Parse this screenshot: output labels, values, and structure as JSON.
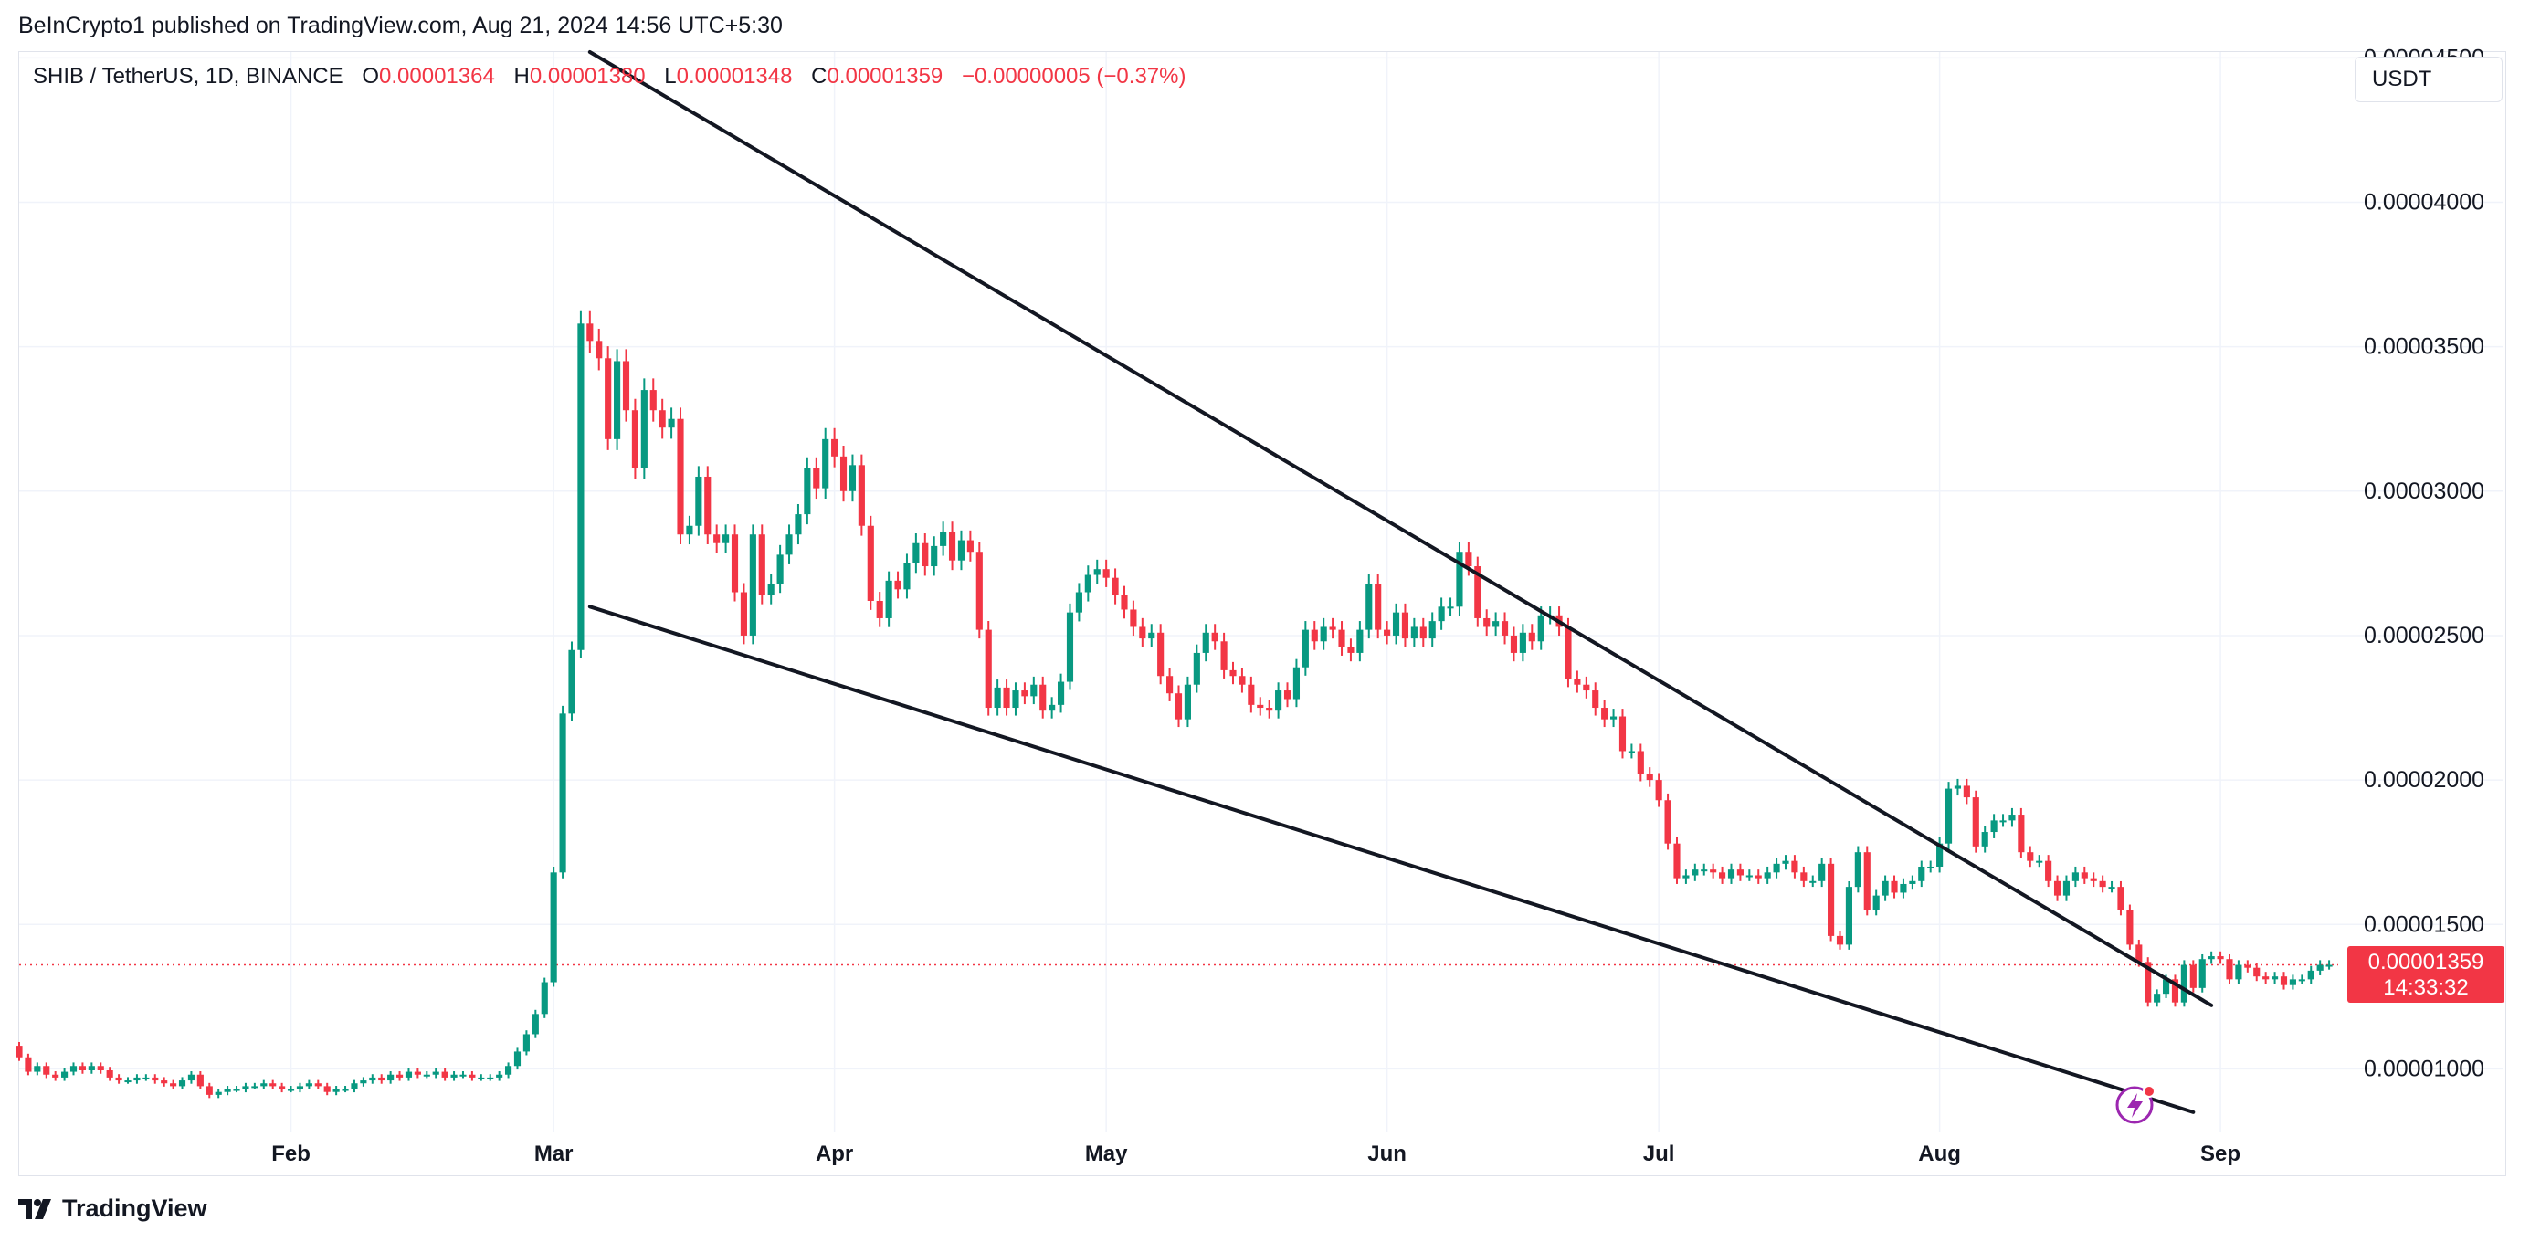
{
  "header": {
    "published_line": "BeInCrypto1 published on TradingView.com, Aug 21, 2024 14:56 UTC+5:30"
  },
  "legend": {
    "symbol": "SHIB / TetherUS, 1D, BINANCE",
    "open_label": "O",
    "open": "0.00001364",
    "high_label": "H",
    "high": "0.00001380",
    "low_label": "L",
    "low": "0.00001348",
    "close_label": "C",
    "close": "0.00001359",
    "change": "−0.00000005 (−0.37%)"
  },
  "currency_selector": {
    "label": "USDT"
  },
  "last_price": {
    "price": "0.00001359",
    "countdown": "14:33:32"
  },
  "footer": {
    "brand": "TradingView",
    "logo_icon": "tradingview-logo-icon"
  },
  "colors": {
    "up": "#089981",
    "down": "#f23645",
    "grid": "#f0f3fa",
    "trendline": "#131722",
    "badge": "#9c27b0"
  },
  "chart_data": {
    "type": "candlestick",
    "y_axis": {
      "min": 7.8e-06,
      "max": 4.52e-05,
      "ticks": [
        1e-05,
        1.5e-05,
        2e-05,
        2.5e-05,
        3e-05,
        3.5e-05,
        4e-05,
        4.5e-05
      ],
      "tick_labels": [
        "0.00001000",
        "0.00001500",
        "0.00002000",
        "0.00002500",
        "0.00003000",
        "0.00003500",
        "0.00004000",
        "0.00004500"
      ]
    },
    "x_axis": {
      "start": "2024-01-02",
      "end": "2024-09-14",
      "ticks": [
        "2024-02-01",
        "2024-03-01",
        "2024-04-01",
        "2024-05-01",
        "2024-06-01",
        "2024-07-01",
        "2024-08-01",
        "2024-09-01"
      ],
      "tick_labels": [
        "Feb",
        "Mar",
        "Apr",
        "May",
        "Jun",
        "Jul",
        "Aug",
        "Sep"
      ]
    },
    "candles_start": "2024-01-01",
    "series": [
      {
        "name": "SHIB / TetherUS",
        "close": [
          1.08e-05,
          1.04e-05,
          9.9e-06,
          1.01e-05,
          9.8e-06,
          9.7e-06,
          9.9e-06,
          1.01e-05,
          9.95e-06,
          1.01e-05,
          9.95e-06,
          9.7e-06,
          9.6e-06,
          9.6e-06,
          9.7e-06,
          9.7e-06,
          9.6e-06,
          9.5e-06,
          9.4e-06,
          9.6e-06,
          9.8e-06,
          9.4e-06,
          9.1e-06,
          9.2e-06,
          9.3e-06,
          9.3e-06,
          9.4e-06,
          9.4e-06,
          9.5e-06,
          9.4e-06,
          9.3e-06,
          9.3e-06,
          9.4e-06,
          9.5e-06,
          9.4e-06,
          9.2e-06,
          9.3e-06,
          9.3e-06,
          9.5e-06,
          9.6e-06,
          9.7e-06,
          9.6e-06,
          9.8e-06,
          9.7e-06,
          9.9e-06,
          9.8e-06,
          9.8e-06,
          9.9e-06,
          9.7e-06,
          9.8e-06,
          9.8e-06,
          9.7e-06,
          9.7e-06,
          9.7e-06,
          9.8e-06,
          1.01e-05,
          1.06e-05,
          1.12e-05,
          1.19e-05,
          1.3e-05,
          1.68e-05,
          2.23e-05,
          2.45e-05,
          3.58e-05,
          3.52e-05,
          3.46e-05,
          3.18e-05,
          3.45e-05,
          3.28e-05,
          3.08e-05,
          3.35e-05,
          3.28e-05,
          3.22e-05,
          3.25e-05,
          2.85e-05,
          2.88e-05,
          3.05e-05,
          2.85e-05,
          2.82e-05,
          2.85e-05,
          2.65e-05,
          2.5e-05,
          2.85e-05,
          2.64e-05,
          2.68e-05,
          2.78e-05,
          2.85e-05,
          2.92e-05,
          3.08e-05,
          3.01e-05,
          3.18e-05,
          3.12e-05,
          3e-05,
          3.09e-05,
          2.88e-05,
          2.62e-05,
          2.56e-05,
          2.69e-05,
          2.66e-05,
          2.75e-05,
          2.82e-05,
          2.74e-05,
          2.81e-05,
          2.86e-05,
          2.76e-05,
          2.83e-05,
          2.79e-05,
          2.52e-05,
          2.25e-05,
          2.32e-05,
          2.25e-05,
          2.31e-05,
          2.29e-05,
          2.33e-05,
          2.24e-05,
          2.26e-05,
          2.34e-05,
          2.58e-05,
          2.65e-05,
          2.71e-05,
          2.73e-05,
          2.7e-05,
          2.64e-05,
          2.59e-05,
          2.53e-05,
          2.49e-05,
          2.51e-05,
          2.36e-05,
          2.3e-05,
          2.21e-05,
          2.33e-05,
          2.44e-05,
          2.51e-05,
          2.48e-05,
          2.38e-05,
          2.36e-05,
          2.33e-05,
          2.26e-05,
          2.25e-05,
          2.24e-05,
          2.31e-05,
          2.28e-05,
          2.39e-05,
          2.52e-05,
          2.48e-05,
          2.53e-05,
          2.52e-05,
          2.46e-05,
          2.44e-05,
          2.52e-05,
          2.68e-05,
          2.52e-05,
          2.5e-05,
          2.58e-05,
          2.49e-05,
          2.53e-05,
          2.49e-05,
          2.55e-05,
          2.6e-05,
          2.6e-05,
          2.79e-05,
          2.74e-05,
          2.56e-05,
          2.53e-05,
          2.55e-05,
          2.5e-05,
          2.44e-05,
          2.51e-05,
          2.48e-05,
          2.57e-05,
          2.57e-05,
          2.53e-05,
          2.35e-05,
          2.33e-05,
          2.31e-05,
          2.25e-05,
          2.21e-05,
          2.22e-05,
          2.1e-05,
          2.1e-05,
          2.02e-05,
          2e-05,
          1.93e-05,
          1.78e-05,
          1.66e-05,
          1.67e-05,
          1.69e-05,
          1.69e-05,
          1.68e-05,
          1.66e-05,
          1.69e-05,
          1.67e-05,
          1.67e-05,
          1.66e-05,
          1.68e-05,
          1.71e-05,
          1.72e-05,
          1.68e-05,
          1.65e-05,
          1.65e-05,
          1.71e-05,
          1.46e-05,
          1.43e-05,
          1.63e-05,
          1.75e-05,
          1.55e-05,
          1.6e-05,
          1.65e-05,
          1.61e-05,
          1.64e-05,
          1.65e-05,
          1.7e-05,
          1.7e-05,
          1.78e-05,
          1.97e-05,
          1.98e-05,
          1.94e-05,
          1.77e-05,
          1.82e-05,
          1.86e-05,
          1.86e-05,
          1.88e-05,
          1.75e-05,
          1.72e-05,
          1.72e-05,
          1.65e-05,
          1.6e-05,
          1.65e-05,
          1.68e-05,
          1.66e-05,
          1.65e-05,
          1.63e-05,
          1.63e-05,
          1.55e-05,
          1.43e-05,
          1.37e-05,
          1.23e-05,
          1.26e-05,
          1.31e-05,
          1.23e-05,
          1.36e-05,
          1.28e-05,
          1.38e-05,
          1.39e-05,
          1.38e-05,
          1.31e-05,
          1.36e-05,
          1.35e-05,
          1.32e-05,
          1.31e-05,
          1.32e-05,
          1.29e-05,
          1.31e-05,
          1.31e-05,
          1.34e-05,
          1.36e-05,
          1.36e-05
        ]
      }
    ],
    "trendlines": [
      {
        "name": "upper-trendline",
        "points": [
          [
            "2024-03-05",
            4.52e-05
          ],
          [
            "2024-08-31",
            1.22e-05
          ]
        ]
      },
      {
        "name": "lower-trendline",
        "points": [
          [
            "2024-03-05",
            2.6e-05
          ],
          [
            "2024-08-29",
            8.5e-06
          ]
        ]
      }
    ]
  }
}
